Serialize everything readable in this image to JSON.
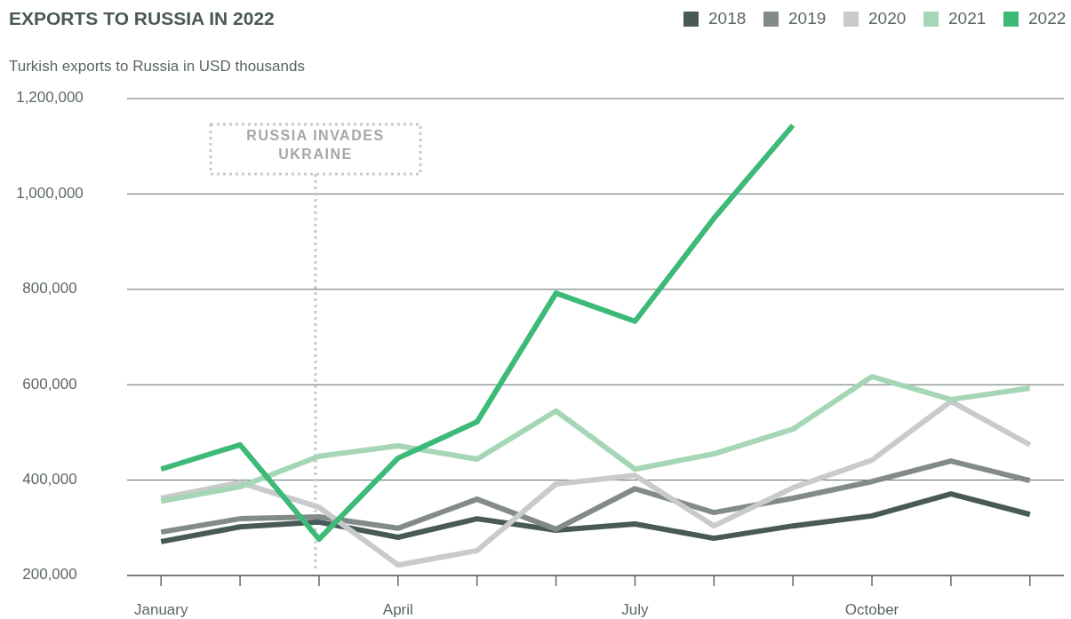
{
  "chart_data": {
    "type": "line",
    "title": "EXPORTS TO RUSSIA IN 2022",
    "subtitle": "Turkish exports to Russia in USD thousands",
    "categories": [
      "January",
      null,
      null,
      "April",
      null,
      null,
      "July",
      null,
      null,
      "October",
      null,
      null
    ],
    "ylim": [
      200000,
      1200000
    ],
    "yticks": [
      {
        "value": 200000,
        "label": "200,000"
      },
      {
        "value": 400000,
        "label": "400,000"
      },
      {
        "value": 600000,
        "label": "600,000"
      },
      {
        "value": 800000,
        "label": "800,000"
      },
      {
        "value": 1000000,
        "label": "1,000,000"
      },
      {
        "value": 1200000,
        "label": "1,200,000"
      }
    ],
    "grid": "y",
    "legend": "top right",
    "marker": "none",
    "line_style": "solid",
    "series": [
      {
        "name": "2018",
        "color": "#475a56",
        "values": [
          271000,
          302000,
          312000,
          280000,
          319000,
          295000,
          308000,
          278000,
          304000,
          325000,
          371000,
          328000
        ]
      },
      {
        "name": "2019",
        "color": "#828b88",
        "values": [
          291000,
          319000,
          323000,
          299000,
          360000,
          297000,
          382000,
          332000,
          362000,
          397000,
          440000,
          399000
        ]
      },
      {
        "name": "2020",
        "color": "#c8cacb",
        "values": [
          362000,
          395000,
          343000,
          222000,
          252000,
          392000,
          410000,
          304000,
          384000,
          442000,
          565000,
          474000
        ]
      },
      {
        "name": "2021",
        "color": "#a5d6b5",
        "values": [
          356000,
          386000,
          450000,
          472000,
          444000,
          545000,
          423000,
          455000,
          507000,
          617000,
          569000,
          593000
        ]
      },
      {
        "name": "2022",
        "color": "#3dba78",
        "values": [
          423000,
          474000,
          276000,
          446000,
          522000,
          792000,
          733000,
          949000,
          1144000,
          null,
          null,
          null
        ]
      }
    ],
    "annotations": [
      "RUSSIA INVADES UKRAINE"
    ]
  }
}
